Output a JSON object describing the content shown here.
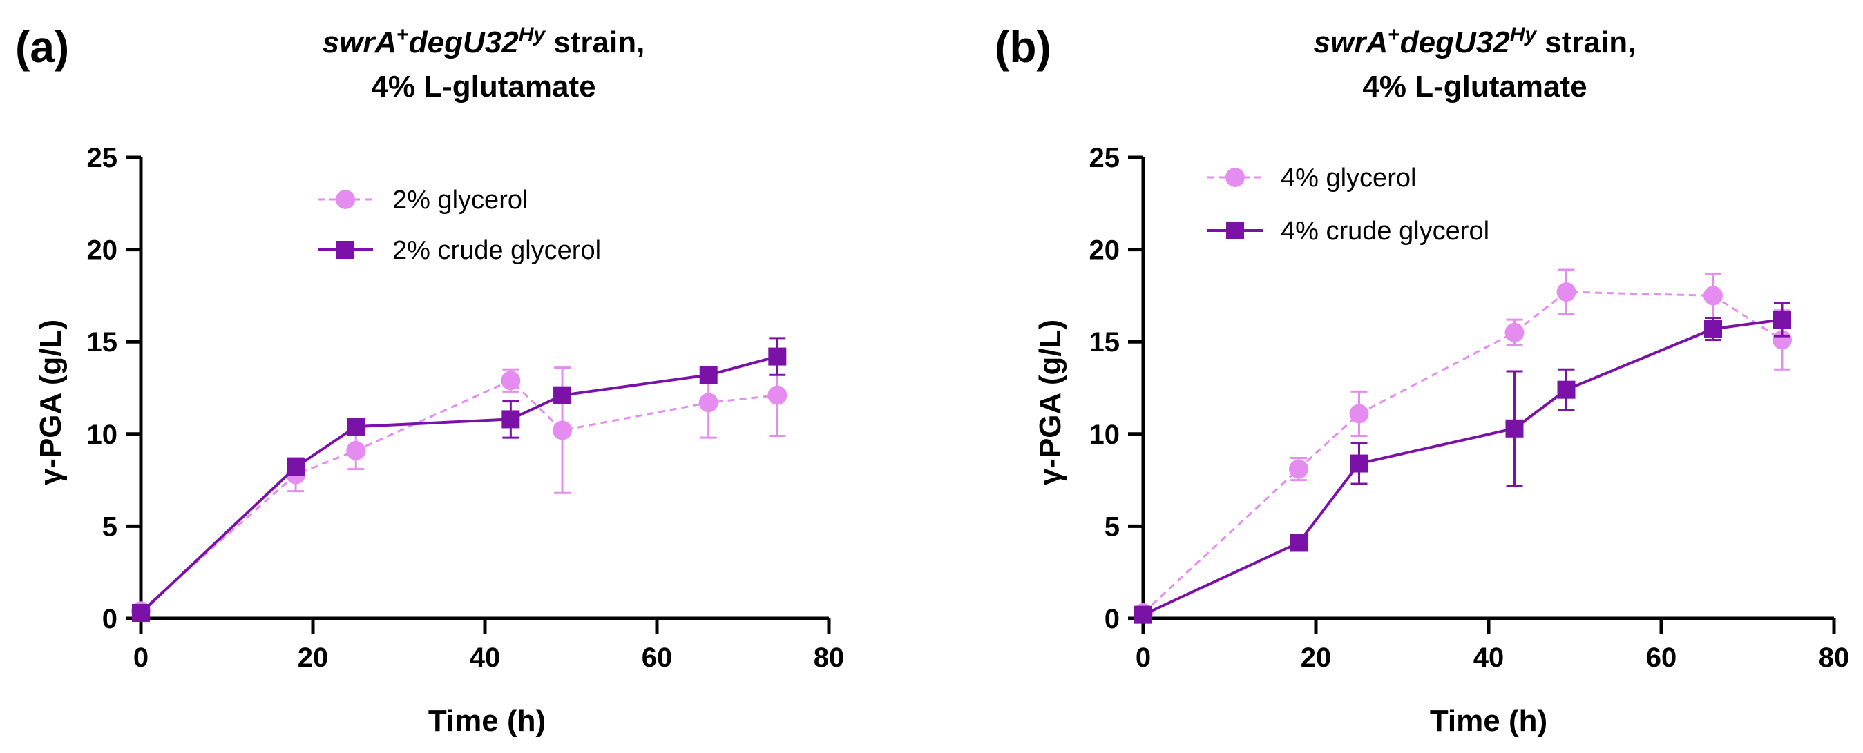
{
  "chart_data": [
    {
      "type": "line",
      "panel_label": "(a)",
      "title": {
        "italic_part": "swrA",
        "sup1": "+",
        "italic_part2": "degU32",
        "sup2": "Hy",
        "rest_line1": " strain,",
        "line2": "4% L-glutamate"
      },
      "xlabel": "Time (h)",
      "ylabel": "γ-PGA (g/L)",
      "xlim": [
        0,
        80
      ],
      "ylim": [
        0,
        25
      ],
      "xticks": [
        0,
        20,
        40,
        60,
        80
      ],
      "yticks": [
        0,
        5,
        10,
        15,
        20,
        25
      ],
      "legend_position": "top-center",
      "series": [
        {
          "name": "2% glycerol",
          "color": "#e58cf0",
          "marker": "circle",
          "line": "dashed",
          "x": [
            0,
            18,
            25,
            43,
            49,
            66,
            74
          ],
          "y": [
            0.4,
            7.8,
            9.1,
            12.9,
            10.2,
            11.7,
            12.1
          ],
          "err": [
            0.1,
            0.9,
            1.0,
            0.6,
            3.4,
            1.9,
            2.2
          ]
        },
        {
          "name": "2% crude glycerol",
          "color": "#7b12a8",
          "marker": "square",
          "line": "solid",
          "x": [
            0,
            18,
            25,
            43,
            49,
            66,
            74
          ],
          "y": [
            0.3,
            8.2,
            10.4,
            10.8,
            12.1,
            13.2,
            14.2
          ],
          "err": [
            0.1,
            0.4,
            0.3,
            1.0,
            0.4,
            0.4,
            1.0
          ]
        }
      ]
    },
    {
      "type": "line",
      "panel_label": "(b)",
      "title": {
        "italic_part": "swrA",
        "sup1": "+",
        "italic_part2": "degU32",
        "sup2": "Hy",
        "rest_line1": " strain,",
        "line2": "4% L-glutamate"
      },
      "xlabel": "Time (h)",
      "ylabel": "γ-PGA (g/L)",
      "xlim": [
        0,
        80
      ],
      "ylim": [
        0,
        25
      ],
      "xticks": [
        0,
        20,
        40,
        60,
        80
      ],
      "yticks": [
        0,
        5,
        10,
        15,
        20,
        25
      ],
      "legend_position": "top-left",
      "series": [
        {
          "name": "4% glycerol",
          "color": "#e58cf0",
          "marker": "circle",
          "line": "dashed",
          "x": [
            0,
            18,
            25,
            43,
            49,
            66,
            74
          ],
          "y": [
            0.3,
            8.1,
            11.1,
            15.5,
            17.7,
            17.5,
            15.1
          ],
          "err": [
            0.1,
            0.6,
            1.2,
            0.7,
            1.2,
            1.2,
            1.6
          ]
        },
        {
          "name": "4% crude glycerol",
          "color": "#7b12a8",
          "marker": "square",
          "line": "solid",
          "x": [
            0,
            18,
            25,
            43,
            49,
            66,
            74
          ],
          "y": [
            0.2,
            4.1,
            8.4,
            10.3,
            12.4,
            15.7,
            16.2
          ],
          "err": [
            0.1,
            0.2,
            1.1,
            3.1,
            1.1,
            0.6,
            0.9
          ]
        }
      ]
    }
  ]
}
